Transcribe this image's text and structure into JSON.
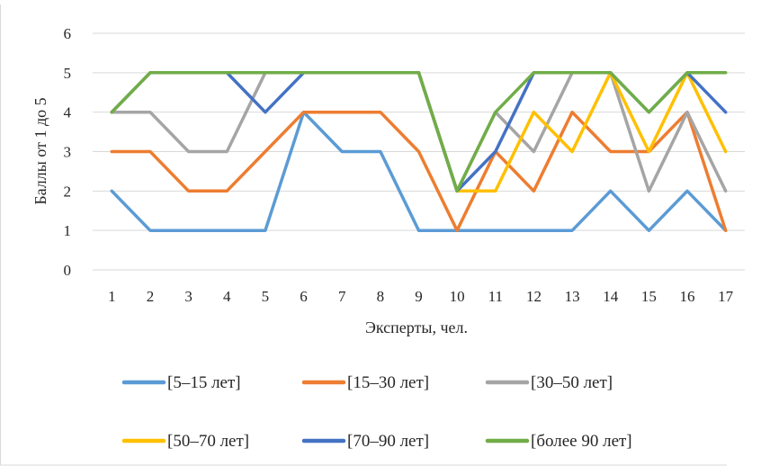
{
  "chart_data": {
    "type": "line",
    "xlabel": "Эксперты, чел.",
    "ylabel": "Баллы от 1 до 5",
    "ylim": [
      0,
      6
    ],
    "yticks": [
      0,
      1,
      2,
      3,
      4,
      5,
      6
    ],
    "categories": [
      "1",
      "2",
      "3",
      "4",
      "5",
      "6",
      "7",
      "8",
      "9",
      "10",
      "11",
      "12",
      "13",
      "14",
      "15",
      "16",
      "17"
    ],
    "grid": "horizontal",
    "legend_position": "bottom",
    "series": [
      {
        "name": "[5–15 лет]",
        "color": "#5B9BD5",
        "values": [
          2,
          1,
          1,
          1,
          1,
          4,
          3,
          3,
          1,
          1,
          1,
          1,
          1,
          2,
          1,
          2,
          1
        ]
      },
      {
        "name": "[15–30 лет]",
        "color": "#ED7D31",
        "values": [
          3,
          3,
          2,
          2,
          3,
          4,
          4,
          4,
          3,
          1,
          3,
          2,
          4,
          3,
          3,
          4,
          1
        ]
      },
      {
        "name": "[30–50 лет]",
        "color": "#A5A5A5",
        "values": [
          4,
          4,
          3,
          3,
          5,
          5,
          5,
          5,
          5,
          2,
          4,
          3,
          5,
          5,
          2,
          4,
          2
        ]
      },
      {
        "name": "[50–70 лет]",
        "color": "#FFC000",
        "values": [
          4,
          5,
          5,
          5,
          5,
          5,
          5,
          5,
          5,
          2,
          2,
          4,
          3,
          5,
          3,
          5,
          3
        ]
      },
      {
        "name": "[70–90 лет]",
        "color": "#4472C4",
        "values": [
          4,
          5,
          5,
          5,
          4,
          5,
          5,
          5,
          5,
          2,
          3,
          5,
          5,
          5,
          4,
          5,
          4
        ]
      },
      {
        "name": "[более 90 лет]",
        "color": "#70AD47",
        "values": [
          4,
          5,
          5,
          5,
          5,
          5,
          5,
          5,
          5,
          2,
          4,
          5,
          5,
          5,
          4,
          5,
          5
        ]
      }
    ]
  }
}
